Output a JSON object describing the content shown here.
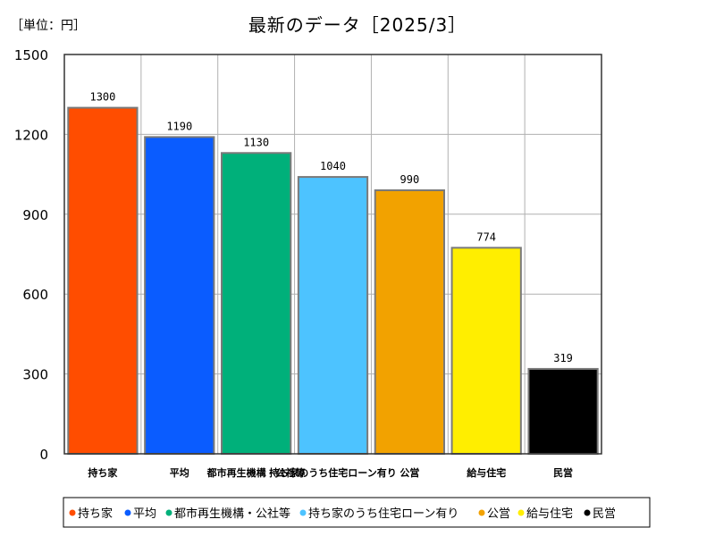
{
  "unit_label": "［単位：円］",
  "colors": {
    "持ち家": "#ff4d00",
    "平均": "#0a5cff",
    "都市再生機構・公社等": "#00b07a",
    "持ち家のうち住宅ローン有り": "#4dc3ff",
    "公営": "#f2a200",
    "給与住宅": "#ffee00",
    "民営": "#000000"
  },
  "chart_data": {
    "type": "bar",
    "title": "最新のデータ［2025/3］",
    "categories": [
      "持ち家",
      "平均",
      "都市再生機構・公社等",
      "持ち家のうち住宅ローン有り",
      "公営",
      "給与住宅",
      "民営"
    ],
    "values": [
      1300,
      1190,
      1130,
      1040,
      990,
      774,
      319
    ],
    "ylim": [
      0,
      1500
    ],
    "yticks": [
      "0",
      "300",
      "600",
      "900",
      "1200",
      "1500"
    ],
    "grid": true,
    "legend": "bottom"
  }
}
